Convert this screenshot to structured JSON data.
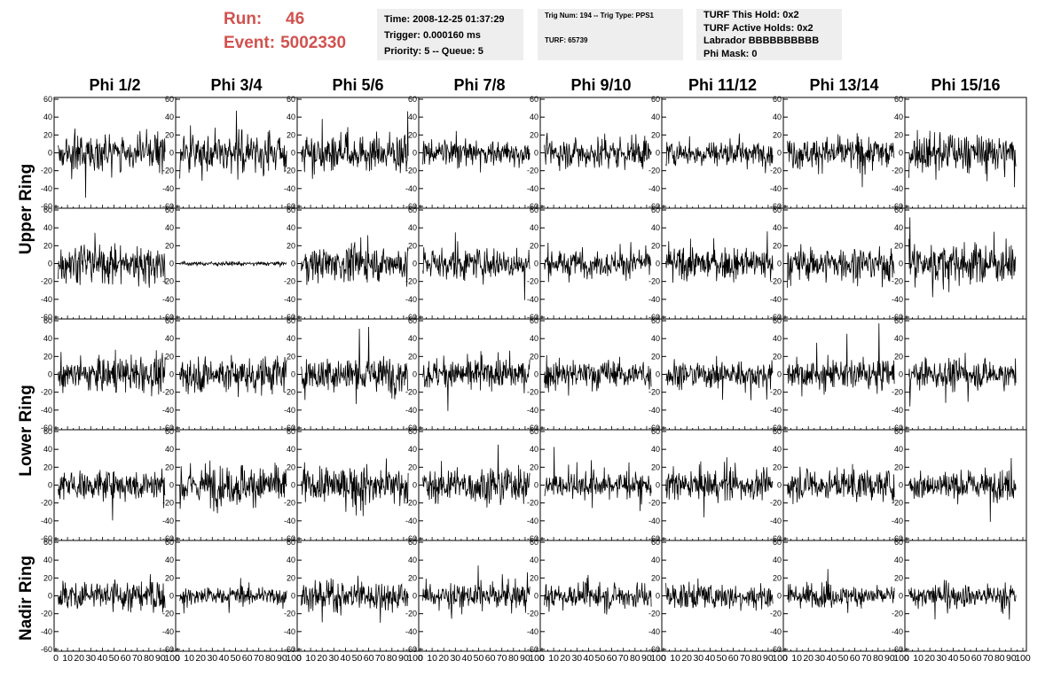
{
  "header": {
    "run_label": "Run:",
    "run_value": "46",
    "event_label": "Event:",
    "event_value": "5002330",
    "time": "Time: 2008-12-25 01:37:29",
    "trigger": "Trigger: 0.000160 ms",
    "priority": "Priority: 5 -- Queue: 5",
    "trig_line": "Trig Num: 194 -- Trig Type: PPS1",
    "turf_line": "TURF: 65739",
    "turf_this_hold": "TURF This Hold: 0x2",
    "turf_active_holds": "TURF Active Holds: 0x2",
    "labrador": "Labrador BBBBBBBBBB",
    "phi_mask": "Phi Mask: 0",
    "label_color": "#d1524f"
  },
  "columns": [
    "Phi 1/2",
    "Phi 3/4",
    "Phi 5/6",
    "Phi 7/8",
    "Phi 9/10",
    "Phi 11/12",
    "Phi 13/14",
    "Phi 15/16"
  ],
  "ring_labels": [
    "Upper Ring",
    "Lower Ring",
    "Nadir Ring"
  ],
  "chart_data": {
    "type": "line",
    "grid": "8 columns x 5 rows of waveform panels",
    "ylim": [
      -60,
      60
    ],
    "yticks": [
      "60",
      "40",
      "20",
      "0",
      "-20",
      "-40",
      "-60"
    ],
    "xlim": [
      0,
      100
    ],
    "xticks": [
      "0",
      "10",
      "20",
      "30",
      "40",
      "50",
      "60",
      "70",
      "80",
      "90",
      "100"
    ],
    "panel_amplitude": [
      [
        17,
        20,
        19,
        12,
        16,
        13,
        16,
        19
      ],
      [
        19,
        2,
        17,
        16,
        13,
        16,
        17,
        20
      ],
      [
        17,
        19,
        19,
        15,
        15,
        14,
        15,
        14
      ],
      [
        15,
        21,
        18,
        17,
        14,
        15,
        15,
        15
      ],
      [
        16,
        9,
        15,
        13,
        13,
        13,
        11,
        12
      ]
    ],
    "grid_lines": false
  }
}
